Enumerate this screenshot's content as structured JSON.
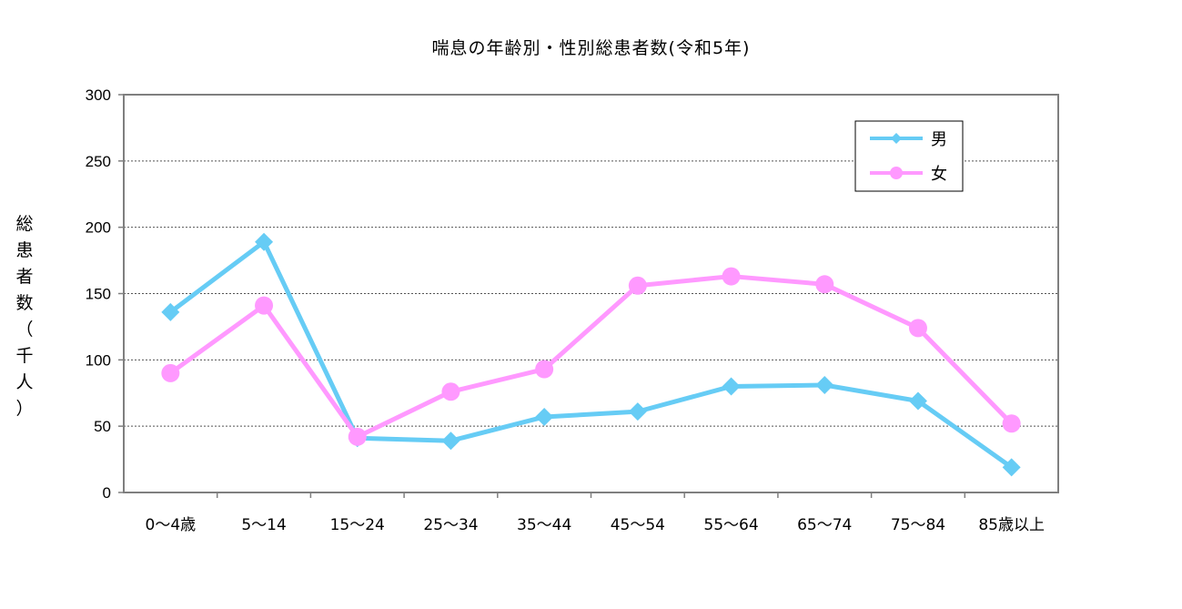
{
  "chart_data": {
    "type": "line",
    "title": "喘息の年齢別・性別総患者数(令和5年)",
    "ylabel": "総患者数（千人）",
    "xlabel": "",
    "ylim": [
      0,
      300
    ],
    "yticks": [
      "0",
      "50",
      "100",
      "150",
      "200",
      "250",
      "300"
    ],
    "categories": [
      "0～4歳",
      "5～14",
      "15～24",
      "25～34",
      "35～44",
      "45～54",
      "55～64",
      "65～74",
      "75～84",
      "85歳以上"
    ],
    "series": [
      {
        "name": "男",
        "color": "#66ccf5",
        "marker": "diamond",
        "values": [
          136,
          189,
          41,
          39,
          57,
          61,
          80,
          81,
          69,
          19
        ]
      },
      {
        "name": "女",
        "color": "#ff99ff",
        "marker": "circle",
        "values": [
          90,
          141,
          42,
          76,
          93,
          156,
          163,
          157,
          124,
          52
        ]
      }
    ],
    "grid": true,
    "legend_position": "top-right"
  }
}
